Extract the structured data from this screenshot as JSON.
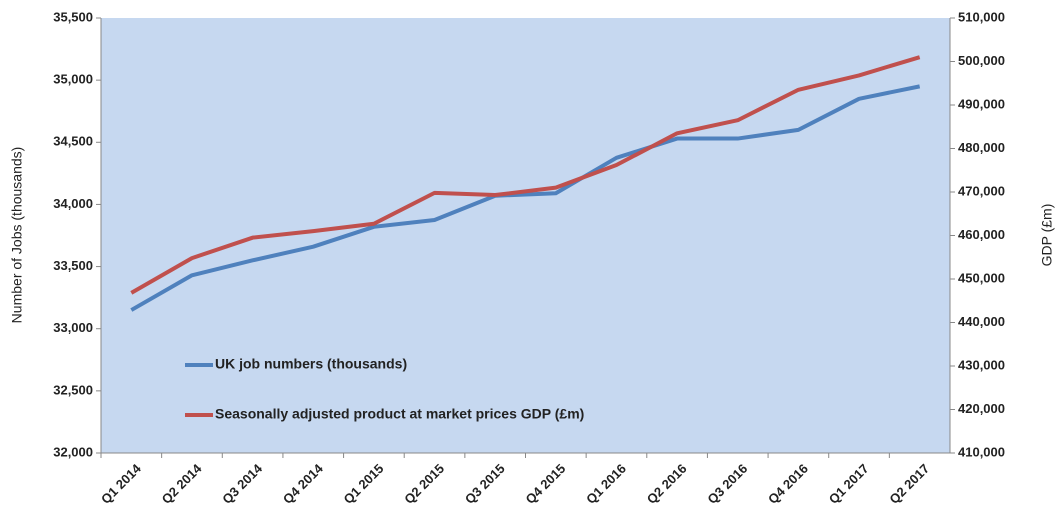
{
  "chart_data": {
    "type": "line",
    "y_label": "Number of Jobs (thousands)",
    "y2_label": "GDP (£m)",
    "categories": [
      "Q1 2014",
      "Q2 2014",
      "Q3 2014",
      "Q4 2014",
      "Q1 2015",
      "Q2 2015",
      "Q3 2015",
      "Q4 2015",
      "Q1 2016",
      "Q2 2016",
      "Q3 2016",
      "Q4 2016",
      "Q1 2017",
      "Q2 2017"
    ],
    "series": [
      {
        "name": "UK job numbers (thousands)",
        "color": "#4f81bd",
        "axis": "y",
        "values": [
          33150,
          33430,
          33550,
          33660,
          33820,
          33875,
          34070,
          34090,
          34375,
          34530,
          34530,
          34600,
          34850,
          34950
        ]
      },
      {
        "name": "Seasonally adjusted product at market prices GDP (£m)",
        "color": "#c0504d",
        "axis": "y2",
        "values": [
          446800,
          454800,
          459500,
          461000,
          462700,
          469800,
          469300,
          471000,
          476200,
          483500,
          486500,
          493500,
          496800,
          501000
        ]
      }
    ],
    "ylim": [
      32000,
      35500
    ],
    "yticks": [
      {
        "value": 32000,
        "label": "32,000"
      },
      {
        "value": 32500,
        "label": "32,500"
      },
      {
        "value": 33000,
        "label": "33,000"
      },
      {
        "value": 33500,
        "label": "33,500"
      },
      {
        "value": 34000,
        "label": "34,000"
      },
      {
        "value": 34500,
        "label": "34,500"
      },
      {
        "value": 35000,
        "label": "35,000"
      },
      {
        "value": 35500,
        "label": "35,500"
      }
    ],
    "y2lim": [
      410000,
      510000
    ],
    "y2ticks": [
      {
        "value": 410000,
        "label": "410,000"
      },
      {
        "value": 420000,
        "label": "420,000"
      },
      {
        "value": 430000,
        "label": "430,000"
      },
      {
        "value": 440000,
        "label": "440,000"
      },
      {
        "value": 450000,
        "label": "450,000"
      },
      {
        "value": 460000,
        "label": "460,000"
      },
      {
        "value": 470000,
        "label": "470,000"
      },
      {
        "value": 480000,
        "label": "480,000"
      },
      {
        "value": 490000,
        "label": "490,000"
      },
      {
        "value": 500000,
        "label": "500,000"
      },
      {
        "value": 510000,
        "label": "510,000"
      }
    ],
    "plot_background": "#c6d8f0"
  }
}
